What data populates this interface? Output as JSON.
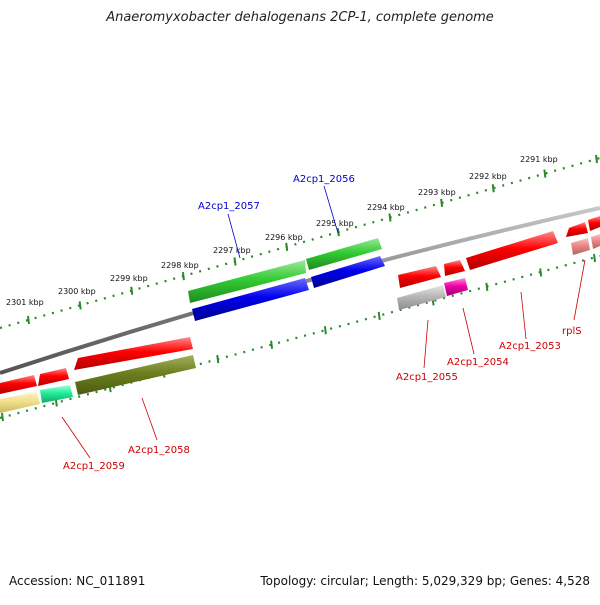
{
  "title": "Anaeromyxobacter dehalogenans 2CP-1, complete genome",
  "footer": {
    "accession": "Accession: NC_011891",
    "summary": "Topology: circular; Length: 5,029,329 bp; Genes: 4,528"
  },
  "colors": {
    "backbone": "#888888",
    "ticks": "#2a8a2a",
    "label_blue": "#0000cc",
    "label_red": "#cc0000"
  },
  "tick_labels": [
    "2301 kbp",
    "2300 kbp",
    "2299 kbp",
    "2298 kbp",
    "2297 kbp",
    "2296 kbp",
    "2295 kbp",
    "2294 kbp",
    "2293 kbp",
    "2292 kbp",
    "2291 kbp"
  ],
  "gene_labels": [
    {
      "id": "A2cp1_2057",
      "strand": "forward"
    },
    {
      "id": "A2cp1_2056",
      "strand": "forward"
    },
    {
      "id": "A2cp1_2055",
      "strand": "reverse"
    },
    {
      "id": "A2cp1_2054",
      "strand": "reverse"
    },
    {
      "id": "A2cp1_2053",
      "strand": "reverse"
    },
    {
      "id": "rplS",
      "strand": "reverse"
    },
    {
      "id": "A2cp1_2059",
      "strand": "reverse"
    },
    {
      "id": "A2cp1_2058",
      "strand": "reverse"
    }
  ]
}
